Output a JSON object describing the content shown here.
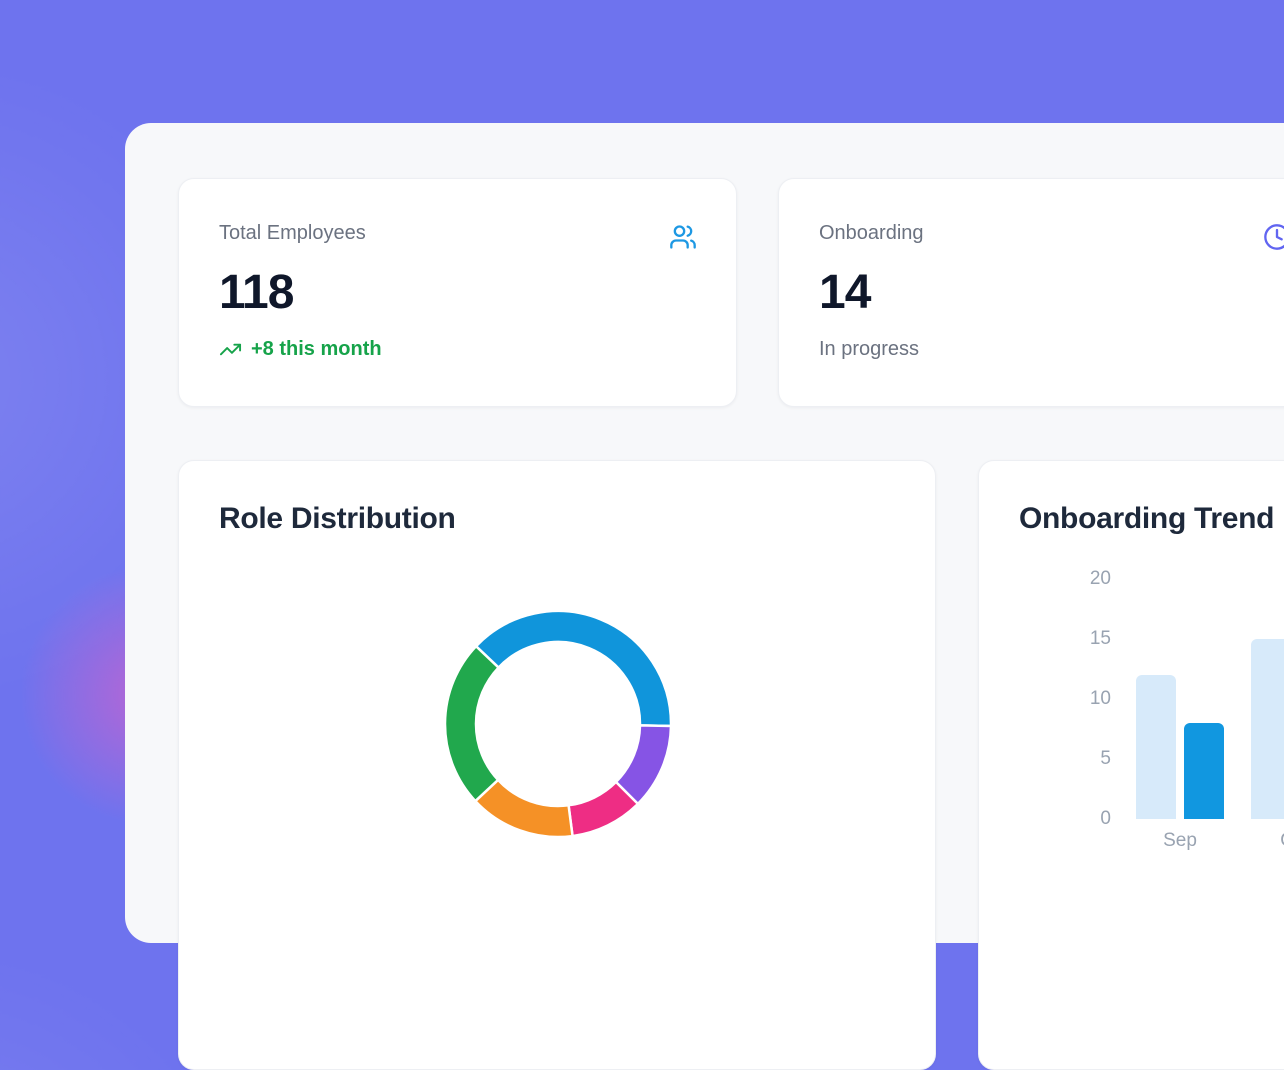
{
  "theme": {
    "background_purple": "#6e73ee",
    "panel_bg": "#f7f8fa",
    "card_bg": "#ffffff",
    "text_dark": "#0f172a",
    "title_dark": "#1e293b",
    "text_gray": "#6b7280",
    "axis_gray": "#99a3b1",
    "green": "#16a34a",
    "icon_blue": "#1d98e3",
    "icon_indigo": "#6165f1"
  },
  "stats": [
    {
      "label": "Total Employees",
      "value": "118",
      "trend": "+8 this month",
      "icon": "users-icon"
    },
    {
      "label": "Onboarding",
      "value": "14",
      "sub": "In progress",
      "icon": "clock-icon"
    }
  ],
  "charts": {
    "role_distribution": {
      "title": "Role Distribution"
    },
    "onboarding_trend": {
      "title": "Onboarding Trend"
    }
  },
  "chart_data": [
    {
      "type": "pie",
      "title": "Role Distribution",
      "donut": true,
      "legend": "none",
      "start_angle_deg": 313.5,
      "segments": [
        {
          "color": "#1095db",
          "span_deg": 137.5,
          "pct": 38
        },
        {
          "color": "#8654e5",
          "span_deg": 44.0,
          "pct": 12
        },
        {
          "color": "#ee2d84",
          "span_deg": 37.6,
          "pct": 10
        },
        {
          "color": "#f59126",
          "span_deg": 54.4,
          "pct": 15
        },
        {
          "color": "#21a84d",
          "span_deg": 86.5,
          "pct": 24
        }
      ]
    },
    {
      "type": "bar",
      "title": "Onboarding Trend",
      "categories": [
        "Sep",
        "Oct"
      ],
      "series": [
        {
          "color": "#d7eafa",
          "values": [
            12,
            15
          ]
        },
        {
          "color": "#1197e0",
          "values": [
            8,
            null
          ]
        }
      ],
      "y_ticks": [
        0,
        5,
        10,
        15,
        20
      ],
      "ylim": [
        0,
        20
      ],
      "grid": false,
      "legend": "none"
    }
  ]
}
